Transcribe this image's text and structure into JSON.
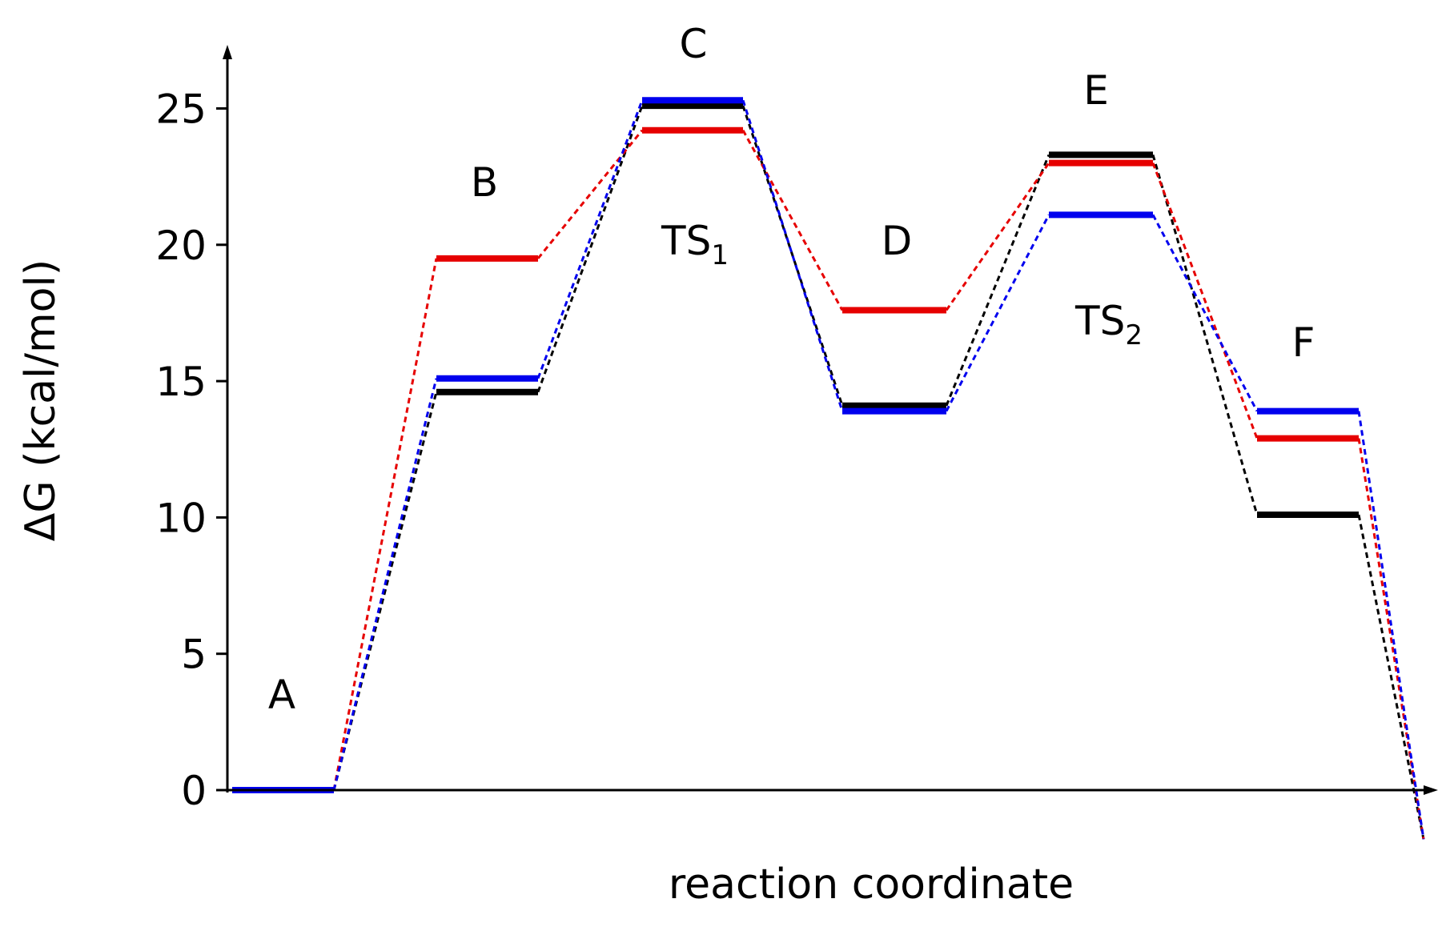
{
  "chart_data": {
    "type": "line",
    "subtype": "reaction energy profile",
    "ylabel": "ΔG (kcal/mol)",
    "xlabel": "reaction coordinate",
    "ylim": [
      -1.9,
      27
    ],
    "yticks": [
      0,
      5,
      10,
      15,
      20,
      25
    ],
    "grid": false,
    "legend": "none",
    "states": [
      "A",
      "B",
      "C",
      "D",
      "E",
      "F"
    ],
    "state_labels": [
      {
        "state": "A",
        "text": "A",
        "sub": ""
      },
      {
        "state": "B",
        "text": "B",
        "sub": ""
      },
      {
        "state": "C",
        "text": "C",
        "sub": ""
      },
      {
        "state": "C",
        "text": "TS",
        "sub": "1"
      },
      {
        "state": "D",
        "text": "D",
        "sub": ""
      },
      {
        "state": "E",
        "text": "E",
        "sub": ""
      },
      {
        "state": "E",
        "text": "TS",
        "sub": "2"
      },
      {
        "state": "F",
        "text": "F",
        "sub": ""
      }
    ],
    "series": [
      {
        "color": "#000000",
        "values": [
          0,
          14.6,
          25.1,
          14.1,
          23.3,
          10.1
        ],
        "end_value": -1.8
      },
      {
        "color": "#e60000",
        "values": [
          0,
          19.5,
          24.2,
          17.6,
          23.0,
          12.9
        ],
        "end_value": -1.8
      },
      {
        "color": "#0000ee",
        "values": [
          0,
          15.1,
          25.3,
          13.9,
          21.1,
          13.9
        ],
        "end_value": -1.8
      }
    ]
  }
}
